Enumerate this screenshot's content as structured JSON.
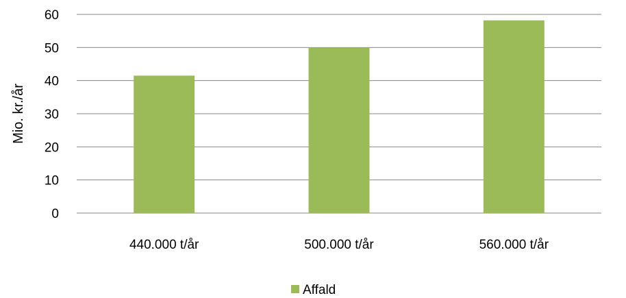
{
  "chart_data": {
    "type": "bar",
    "categories": [
      "440.000 t/år",
      "500.000 t/år",
      "560.000 t/år"
    ],
    "series": [
      {
        "name": "Affald",
        "values": [
          41.5,
          50,
          58.2
        ],
        "color": "#9bbb59"
      }
    ],
    "xlabel": "",
    "ylabel": "Mio. kr./år",
    "ylim": [
      0,
      60
    ],
    "yticks": [
      0,
      10,
      20,
      30,
      40,
      50,
      60
    ],
    "grid": true,
    "legend": "bottom-center",
    "gridline_color": "#868686"
  }
}
